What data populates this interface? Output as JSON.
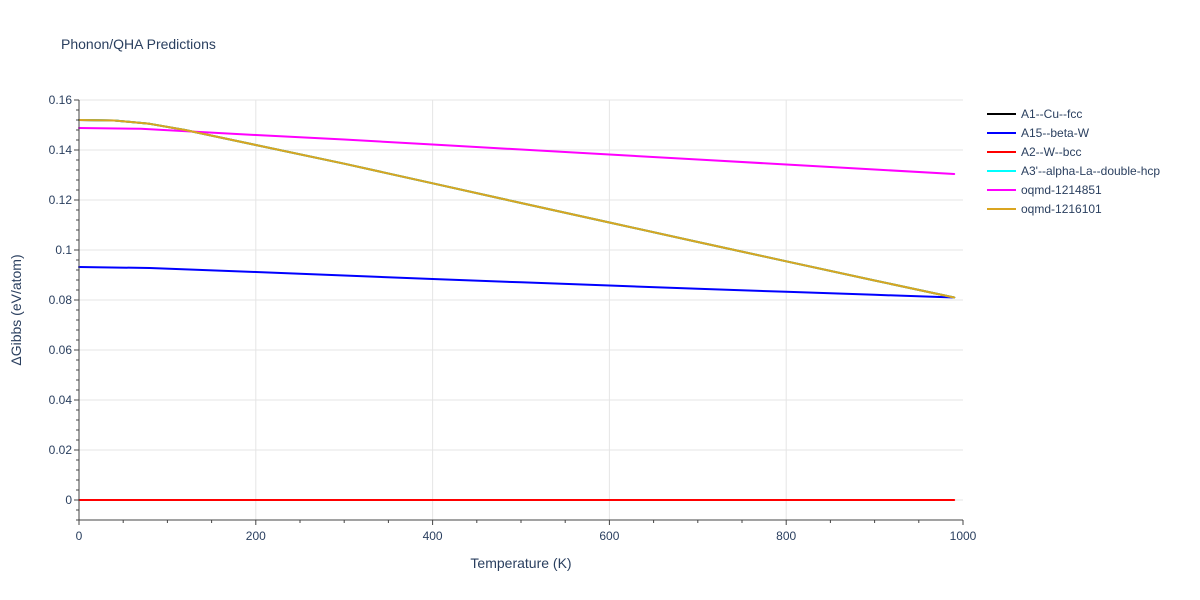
{
  "chart_data": {
    "type": "line",
    "title": "Phonon/QHA Predictions",
    "xlabel": "Temperature (K)",
    "ylabel": "ΔGibbs (eV/atom)",
    "xlim": [
      0,
      1000
    ],
    "ylim": [
      -0.008,
      0.16
    ],
    "x_ticks": [
      0,
      200,
      400,
      600,
      800,
      1000
    ],
    "x_tick_labels": [
      "0",
      "200",
      "400",
      "600",
      "800",
      "1000"
    ],
    "y_ticks": [
      0,
      0.02,
      0.04,
      0.06,
      0.08,
      0.1,
      0.12,
      0.14,
      0.16
    ],
    "y_tick_labels": [
      "0",
      "0.02",
      "0.04",
      "0.06",
      "0.08",
      "0.1",
      "0.12",
      "0.14",
      "0.16"
    ],
    "grid": true,
    "legend_position": "right",
    "series": [
      {
        "name": "A1--Cu--fcc",
        "color": "#000000",
        "x": [
          0,
          40,
          80,
          120,
          160,
          200,
          300,
          400,
          500,
          600,
          700,
          800,
          900,
          990
        ],
        "y": [
          0.152,
          0.1518,
          0.1505,
          0.148,
          0.145,
          0.142,
          0.1345,
          0.1267,
          0.1188,
          0.111,
          0.1032,
          0.0955,
          0.0878,
          0.081
        ]
      },
      {
        "name": "A15--beta-W",
        "color": "#0000ff",
        "x": [
          0,
          80,
          200,
          300,
          400,
          500,
          600,
          700,
          800,
          900,
          990
        ],
        "y": [
          0.0932,
          0.0928,
          0.0912,
          0.0898,
          0.0884,
          0.0871,
          0.0858,
          0.0845,
          0.0833,
          0.0821,
          0.081
        ]
      },
      {
        "name": "A2--W--bcc",
        "color": "#ff0000",
        "x": [
          0,
          990
        ],
        "y": [
          0,
          0
        ]
      },
      {
        "name": "A3'--alpha-La--double-hcp",
        "color": "#00ffff",
        "x": [
          0,
          40,
          80,
          120,
          160,
          200,
          300,
          400,
          500,
          600,
          700,
          800,
          900,
          990
        ],
        "y": [
          0.152,
          0.1518,
          0.1505,
          0.148,
          0.145,
          0.142,
          0.1345,
          0.1267,
          0.1188,
          0.111,
          0.1032,
          0.0955,
          0.0878,
          0.081
        ]
      },
      {
        "name": "oqmd-1214851",
        "color": "#ff00ff",
        "x": [
          0,
          70,
          200,
          300,
          400,
          500,
          600,
          700,
          800,
          900,
          990
        ],
        "y": [
          0.1488,
          0.1485,
          0.146,
          0.1442,
          0.1422,
          0.1402,
          0.1382,
          0.1362,
          0.1342,
          0.1322,
          0.1304
        ]
      },
      {
        "name": "oqmd-1216101",
        "color": "#daa520",
        "x": [
          0,
          40,
          80,
          120,
          160,
          200,
          300,
          400,
          500,
          600,
          700,
          800,
          900,
          990
        ],
        "y": [
          0.152,
          0.1518,
          0.1505,
          0.148,
          0.145,
          0.142,
          0.1345,
          0.1267,
          0.1188,
          0.111,
          0.1032,
          0.0955,
          0.0878,
          0.081
        ]
      }
    ]
  }
}
